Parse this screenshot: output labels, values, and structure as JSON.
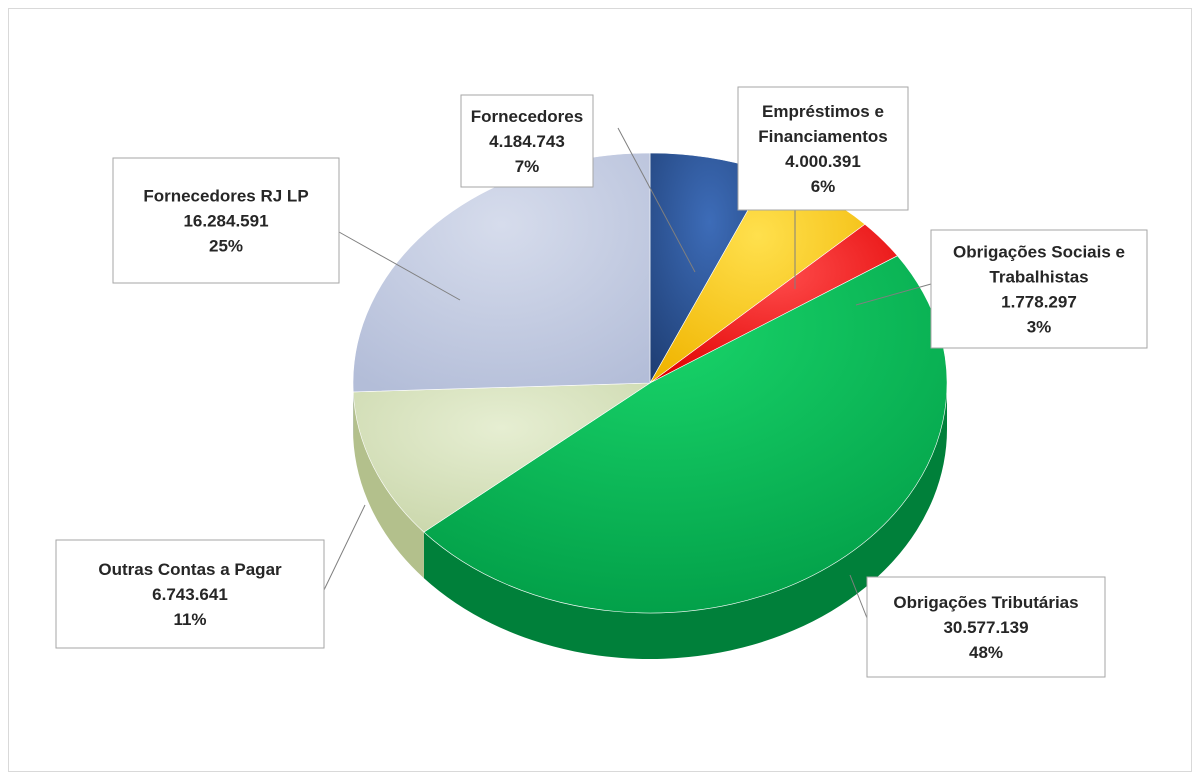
{
  "chart_data": {
    "type": "pie",
    "title": "",
    "series": [
      {
        "name": "",
        "values": [
          {
            "label": "Fornecedores",
            "value": "4.184.743",
            "percent": "7%",
            "color": "#2e528f"
          },
          {
            "label": "Empréstimos e Financiamentos",
            "label_lines": [
              "Empréstimos e",
              "Financiamentos"
            ],
            "value": "4.000.391",
            "percent": "6%",
            "color": "#ffcc00"
          },
          {
            "label": "Obrigações Sociais e Trabalhistas",
            "label_lines": [
              "Obrigações Sociais e",
              "Trabalhistas"
            ],
            "value": "1.778.297",
            "percent": "3%",
            "color": "#ff1a1a"
          },
          {
            "label": "Obrigações Tributárias",
            "value": "30.577.139",
            "percent": "48%",
            "color": "#00b050"
          },
          {
            "label": "Outras Contas a Pagar",
            "value": "6.743.641",
            "percent": "11%",
            "color": "#d9e5c0"
          },
          {
            "label": "Fornecedores RJ LP",
            "value": "16.284.591",
            "percent": "25%",
            "color": "#c5cde3"
          }
        ]
      }
    ],
    "style": "3d"
  }
}
